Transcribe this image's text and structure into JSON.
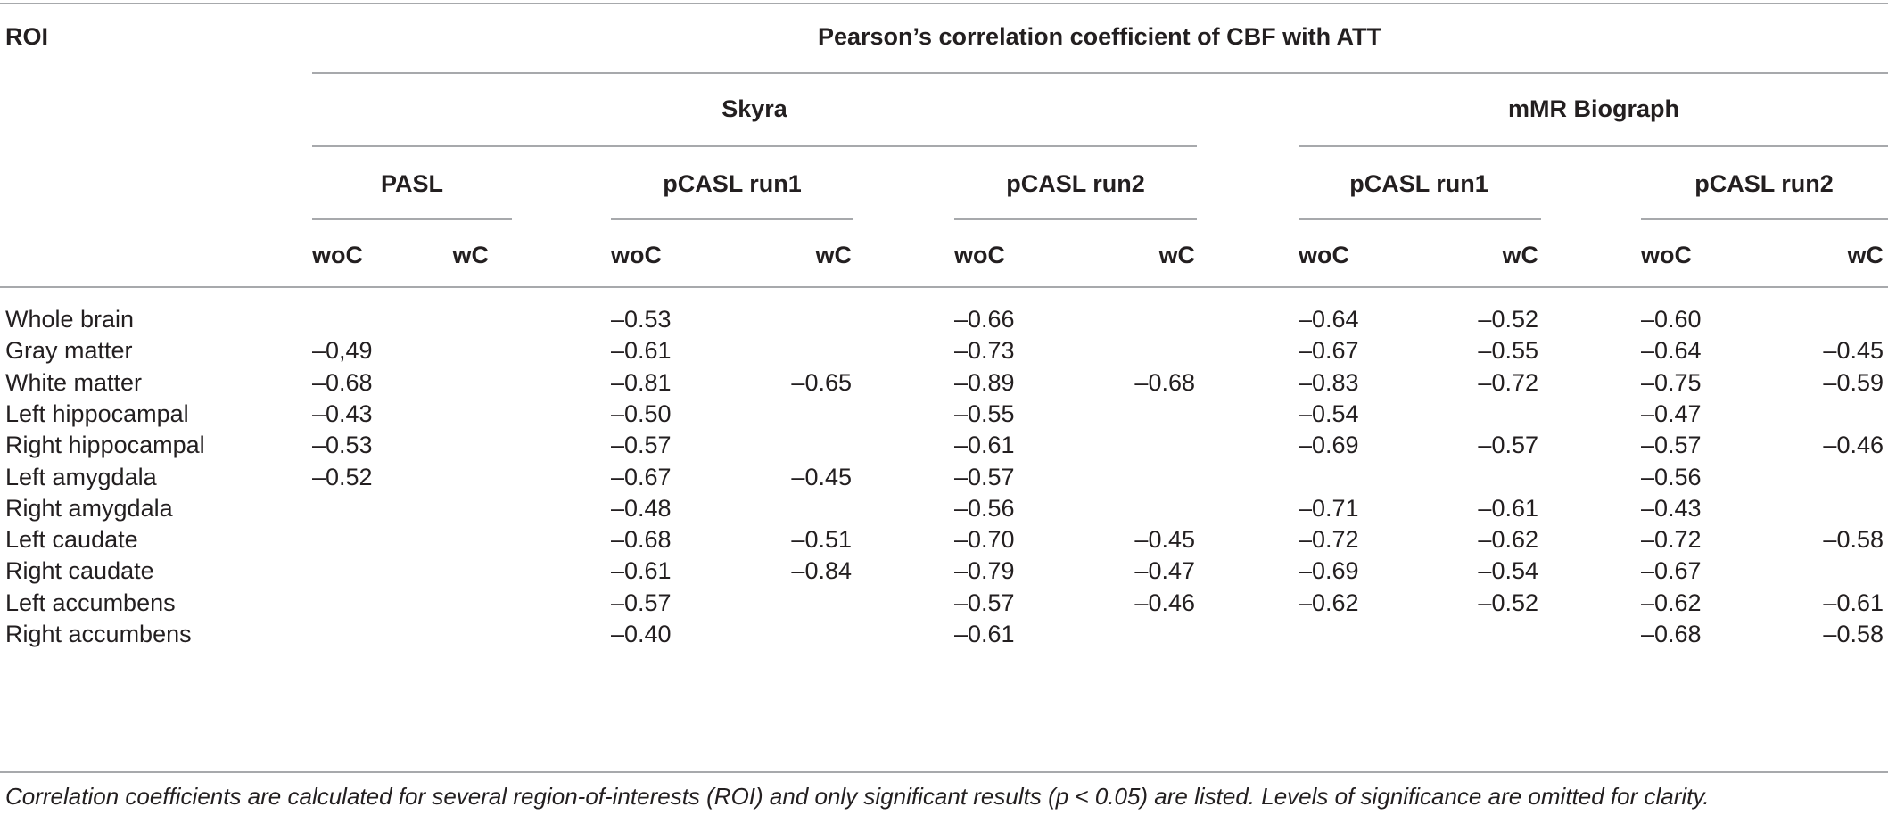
{
  "table": {
    "roi_header": "ROI",
    "main_header": "Pearson’s correlation coefficient of CBF with ATT",
    "scanners": [
      "Skyra",
      "mMR Biograph"
    ],
    "sequences": [
      "PASL",
      "pCASL run1",
      "pCASL run2",
      "pCASL run1",
      "pCASL run2"
    ],
    "columns": [
      "woC",
      "wC",
      "woC",
      "wC",
      "woC",
      "wC",
      "woC",
      "wC",
      "woC",
      "wC"
    ],
    "rows": [
      {
        "roi": "Whole brain",
        "values": [
          "",
          "",
          "–0.53",
          "",
          "–0.66",
          "",
          "–0.64",
          "–0.52",
          "–0.60",
          ""
        ]
      },
      {
        "roi": "Gray matter",
        "values": [
          "–0,49",
          "",
          "–0.61",
          "",
          "–0.73",
          "",
          "–0.67",
          "–0.55",
          "–0.64",
          "–0.45"
        ]
      },
      {
        "roi": "White matter",
        "values": [
          "–0.68",
          "",
          "–0.81",
          "–0.65",
          "–0.89",
          "–0.68",
          "–0.83",
          "–0.72",
          "–0.75",
          "–0.59"
        ]
      },
      {
        "roi": "Left hippocampal",
        "values": [
          "–0.43",
          "",
          "–0.50",
          "",
          "–0.55",
          "",
          "–0.54",
          "",
          "–0.47",
          ""
        ]
      },
      {
        "roi": "Right hippocampal",
        "values": [
          "–0.53",
          "",
          "–0.57",
          "",
          "–0.61",
          "",
          "–0.69",
          "–0.57",
          "–0.57",
          "–0.46"
        ]
      },
      {
        "roi": "Left amygdala",
        "values": [
          "–0.52",
          "",
          "–0.67",
          "–0.45",
          "–0.57",
          "",
          "",
          "",
          "–0.56",
          ""
        ]
      },
      {
        "roi": "Right amygdala",
        "values": [
          "",
          "",
          "–0.48",
          "",
          "–0.56",
          "",
          "–0.71",
          "–0.61",
          "–0.43",
          ""
        ]
      },
      {
        "roi": "Left caudate",
        "values": [
          "",
          "",
          "–0.68",
          "–0.51",
          "–0.70",
          "–0.45",
          "–0.72",
          "–0.62",
          "–0.72",
          "–0.58"
        ]
      },
      {
        "roi": "Right caudate",
        "values": [
          "",
          "",
          "–0.61",
          "–0.84",
          "–0.79",
          "–0.47",
          "–0.69",
          "–0.54",
          "–0.67",
          ""
        ]
      },
      {
        "roi": "Left accumbens",
        "values": [
          "",
          "",
          "–0.57",
          "",
          "–0.57",
          "–0.46",
          "–0.62",
          "–0.52",
          "–0.62",
          "–0.61"
        ]
      },
      {
        "roi": "Right accumbens",
        "values": [
          "",
          "",
          "–0.40",
          "",
          "–0.61",
          "",
          "",
          "",
          "–0.68",
          "–0.58"
        ]
      }
    ],
    "caption": "Correlation coefficients are calculated for several region-of-interests (ROI) and only significant results (p < 0.05) are listed. Levels of significance are omitted for clarity."
  }
}
